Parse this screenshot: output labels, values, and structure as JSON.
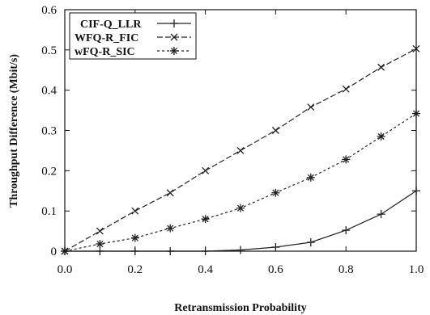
{
  "chart_data": {
    "type": "line",
    "xlabel": "Retransmission Probability",
    "ylabel": "Throughput Difference (Mbit/s)",
    "xlim": [
      0.0,
      1.0
    ],
    "ylim": [
      0.0,
      0.6
    ],
    "x_ticks": [
      "0.0",
      "0.2",
      "0.4",
      "0.6",
      "0.8",
      "1.0"
    ],
    "y_ticks": [
      "0",
      "0.1",
      "0.2",
      "0.3",
      "0.4",
      "0.5",
      "0.6"
    ],
    "legend_position": "top-left",
    "grid": false,
    "x": [
      0.0,
      0.1,
      0.2,
      0.3,
      0.4,
      0.5,
      0.6,
      0.7,
      0.8,
      0.9,
      1.0
    ],
    "series": [
      {
        "name": "CIF-Q_LLR",
        "marker": "plus",
        "dash": "solid",
        "color": "#222222",
        "values": [
          0.0,
          0.0,
          0.0,
          0.0,
          0.0,
          0.003,
          0.01,
          0.022,
          0.052,
          0.092,
          0.15
        ]
      },
      {
        "name": "WFQ-R_FIC",
        "marker": "cross",
        "dash": "long-dash",
        "color": "#222222",
        "values": [
          0.0,
          0.05,
          0.1,
          0.145,
          0.2,
          0.25,
          0.3,
          0.358,
          0.403,
          0.457,
          0.503
        ]
      },
      {
        "name": "wFQ-R_SIC",
        "marker": "star",
        "dash": "short-dash",
        "color": "#222222",
        "values": [
          0.0,
          0.018,
          0.033,
          0.057,
          0.08,
          0.107,
          0.145,
          0.183,
          0.228,
          0.285,
          0.342
        ]
      }
    ]
  }
}
